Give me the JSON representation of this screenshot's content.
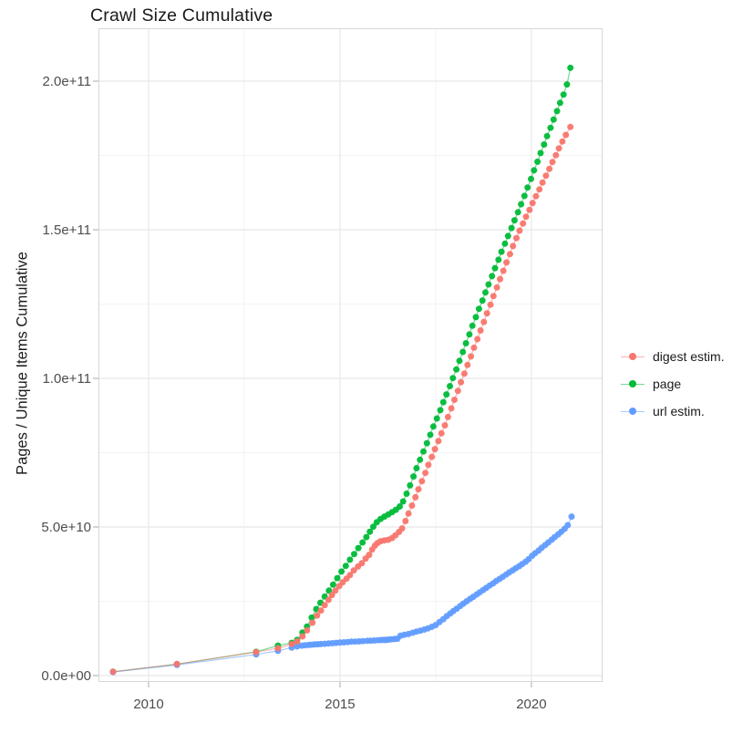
{
  "title": "Crawl Size Cumulative",
  "y_axis": {
    "title": "Pages / Unique Items Cumulative",
    "tick_labels": [
      "0.0e+00",
      "5.0e+10",
      "1.0e+11",
      "1.5e+11",
      "2.0e+11"
    ],
    "tick_values_billions": [
      0,
      50,
      100,
      150,
      200
    ],
    "minor_values_billions": [
      25,
      75,
      125,
      175
    ]
  },
  "x_axis": {
    "tick_labels": [
      "2010",
      "2015",
      "2020"
    ],
    "tick_values": [
      2010,
      2015,
      2020
    ],
    "minor_values": [
      2012.5,
      2017.5
    ]
  },
  "legend": {
    "items": [
      {
        "label": "digest estim.",
        "color": "#F8766D"
      },
      {
        "label": "page",
        "color": "#00BA38"
      },
      {
        "label": "url estim.",
        "color": "#619CFF"
      }
    ]
  },
  "colors": {
    "digest": "#F8766D",
    "page": "#00BA38",
    "url": "#619CFF",
    "grid_major": "#e8e8e8",
    "grid_minor": "#f3f3f3",
    "panel_border": "#d6d6d6",
    "tick_mark": "#b8b8b8",
    "tick_label": "#4d4d4d"
  },
  "chart_data": {
    "type": "scatter",
    "title": "Crawl Size Cumulative",
    "xlabel": "",
    "ylabel": "Pages / Unique Items Cumulative",
    "x_unit": "year",
    "y_unit_note": "point values below are in billions (1e9); axis shows 0.0e+00 to 2.0e+11",
    "xlim": [
      2008.69,
      2021.86
    ],
    "ylim_billions": [
      -2.15,
      217.8
    ],
    "grid": "major+minor",
    "legend_position": "right",
    "marker": "point-with-line",
    "series": [
      {
        "name": "page",
        "color": "#00BA38",
        "points": [
          [
            2009.07,
            1.3
          ],
          [
            2010.74,
            3.8
          ],
          [
            2012.81,
            8.0
          ],
          [
            2013.38,
            10.1
          ],
          [
            2013.74,
            11.0
          ],
          [
            2013.88,
            12.0
          ],
          [
            2014.02,
            14.5
          ],
          [
            2014.14,
            16.5
          ],
          [
            2014.26,
            19.5
          ],
          [
            2014.38,
            22.4
          ],
          [
            2014.49,
            24.5
          ],
          [
            2014.6,
            26.6
          ],
          [
            2014.71,
            28.6
          ],
          [
            2014.82,
            30.6
          ],
          [
            2014.93,
            32.8
          ],
          [
            2015.04,
            35.0
          ],
          [
            2015.15,
            36.9
          ],
          [
            2015.26,
            39.0
          ],
          [
            2015.37,
            40.9
          ],
          [
            2015.48,
            42.9
          ],
          [
            2015.59,
            44.8
          ],
          [
            2015.69,
            46.6
          ],
          [
            2015.78,
            48.4
          ],
          [
            2015.87,
            50.1
          ],
          [
            2015.96,
            51.6
          ],
          [
            2016.06,
            52.7
          ],
          [
            2016.16,
            53.5
          ],
          [
            2016.26,
            54.2
          ],
          [
            2016.36,
            55.0
          ],
          [
            2016.46,
            55.8
          ],
          [
            2016.56,
            56.9
          ],
          [
            2016.65,
            58.6
          ],
          [
            2016.74,
            61.2
          ],
          [
            2016.83,
            64.0
          ],
          [
            2016.92,
            67.0
          ],
          [
            2017.0,
            69.8
          ],
          [
            2017.09,
            72.6
          ],
          [
            2017.18,
            75.4
          ],
          [
            2017.27,
            78.2
          ],
          [
            2017.36,
            81.0
          ],
          [
            2017.44,
            83.8
          ],
          [
            2017.53,
            86.5
          ],
          [
            2017.62,
            89.3
          ],
          [
            2017.7,
            92.0
          ],
          [
            2017.78,
            94.6
          ],
          [
            2017.87,
            97.4
          ],
          [
            2017.95,
            100.1
          ],
          [
            2018.04,
            103.0
          ],
          [
            2018.12,
            105.9
          ],
          [
            2018.21,
            108.9
          ],
          [
            2018.29,
            111.8
          ],
          [
            2018.38,
            114.8
          ],
          [
            2018.46,
            117.7
          ],
          [
            2018.55,
            120.6
          ],
          [
            2018.63,
            123.4
          ],
          [
            2018.72,
            126.2
          ],
          [
            2018.8,
            128.9
          ],
          [
            2018.88,
            131.6
          ],
          [
            2018.97,
            134.4
          ],
          [
            2019.05,
            137.1
          ],
          [
            2019.14,
            139.9
          ],
          [
            2019.22,
            142.6
          ],
          [
            2019.31,
            145.3
          ],
          [
            2019.39,
            147.9
          ],
          [
            2019.48,
            150.6
          ],
          [
            2019.56,
            153.2
          ],
          [
            2019.65,
            155.9
          ],
          [
            2019.73,
            158.6
          ],
          [
            2019.82,
            161.4
          ],
          [
            2019.9,
            164.2
          ],
          [
            2019.99,
            167.1
          ],
          [
            2020.07,
            170.0
          ],
          [
            2020.16,
            172.9
          ],
          [
            2020.24,
            175.8
          ],
          [
            2020.33,
            178.7
          ],
          [
            2020.41,
            181.5
          ],
          [
            2020.5,
            184.3
          ],
          [
            2020.58,
            187.1
          ],
          [
            2020.67,
            189.9
          ],
          [
            2020.75,
            192.7
          ],
          [
            2020.84,
            195.5
          ],
          [
            2020.93,
            198.9
          ],
          [
            2021.02,
            204.5
          ]
        ]
      },
      {
        "name": "url estim.",
        "color": "#619CFF",
        "points": [
          [
            2009.07,
            1.2
          ],
          [
            2010.74,
            3.6
          ],
          [
            2012.81,
            7.1
          ],
          [
            2013.38,
            8.3
          ],
          [
            2013.74,
            9.4
          ],
          [
            2013.88,
            9.8
          ],
          [
            2014.0,
            10.1
          ],
          [
            2014.09,
            10.2
          ],
          [
            2014.18,
            10.3
          ],
          [
            2014.26,
            10.4
          ],
          [
            2014.34,
            10.5
          ],
          [
            2014.42,
            10.55
          ],
          [
            2014.5,
            10.6
          ],
          [
            2014.6,
            10.7
          ],
          [
            2014.7,
            10.8
          ],
          [
            2014.8,
            10.9
          ],
          [
            2014.9,
            11.0
          ],
          [
            2015.0,
            11.1
          ],
          [
            2015.1,
            11.2
          ],
          [
            2015.2,
            11.3
          ],
          [
            2015.3,
            11.4
          ],
          [
            2015.4,
            11.45
          ],
          [
            2015.5,
            11.5
          ],
          [
            2015.6,
            11.6
          ],
          [
            2015.71,
            11.7
          ],
          [
            2015.8,
            11.75
          ],
          [
            2015.9,
            11.8
          ],
          [
            2016.0,
            11.9
          ],
          [
            2016.08,
            11.95
          ],
          [
            2016.15,
            12.0
          ],
          [
            2016.19,
            12.0
          ],
          [
            2016.23,
            12.05
          ],
          [
            2016.27,
            12.1
          ],
          [
            2016.35,
            12.2
          ],
          [
            2016.43,
            12.3
          ],
          [
            2016.5,
            12.4
          ],
          [
            2016.58,
            13.4
          ],
          [
            2016.68,
            13.7
          ],
          [
            2016.79,
            14.0
          ],
          [
            2016.9,
            14.4
          ],
          [
            2017.0,
            14.8
          ],
          [
            2017.1,
            15.1
          ],
          [
            2017.2,
            15.5
          ],
          [
            2017.3,
            15.9
          ],
          [
            2017.4,
            16.4
          ],
          [
            2017.5,
            17.0
          ],
          [
            2017.6,
            18.0
          ],
          [
            2017.7,
            19.0
          ],
          [
            2017.79,
            20.0
          ],
          [
            2017.88,
            20.9
          ],
          [
            2017.96,
            21.7
          ],
          [
            2018.05,
            22.5
          ],
          [
            2018.14,
            23.4
          ],
          [
            2018.22,
            24.2
          ],
          [
            2018.31,
            25.0
          ],
          [
            2018.4,
            25.8
          ],
          [
            2018.48,
            26.5
          ],
          [
            2018.57,
            27.3
          ],
          [
            2018.65,
            28.0
          ],
          [
            2018.74,
            28.8
          ],
          [
            2018.82,
            29.5
          ],
          [
            2018.91,
            30.3
          ],
          [
            2019.0,
            31.0
          ],
          [
            2019.08,
            31.8
          ],
          [
            2019.17,
            32.5
          ],
          [
            2019.25,
            33.2
          ],
          [
            2019.34,
            34.0
          ],
          [
            2019.42,
            34.7
          ],
          [
            2019.51,
            35.4
          ],
          [
            2019.59,
            36.1
          ],
          [
            2019.68,
            36.8
          ],
          [
            2019.76,
            37.5
          ],
          [
            2019.85,
            38.3
          ],
          [
            2019.93,
            39.2
          ],
          [
            2020.02,
            40.3
          ],
          [
            2020.1,
            41.2
          ],
          [
            2020.19,
            42.1
          ],
          [
            2020.27,
            43.0
          ],
          [
            2020.36,
            43.9
          ],
          [
            2020.44,
            44.8
          ],
          [
            2020.53,
            45.7
          ],
          [
            2020.61,
            46.6
          ],
          [
            2020.7,
            47.5
          ],
          [
            2020.78,
            48.4
          ],
          [
            2020.87,
            49.4
          ],
          [
            2020.95,
            50.6
          ],
          [
            2021.05,
            53.5
          ]
        ]
      },
      {
        "name": "digest estim.",
        "color": "#F8766D",
        "points": [
          [
            2009.07,
            1.3
          ],
          [
            2010.74,
            3.9
          ],
          [
            2012.81,
            7.9
          ],
          [
            2013.38,
            9.2
          ],
          [
            2013.74,
            10.6
          ],
          [
            2013.88,
            11.5
          ],
          [
            2014.02,
            13.2
          ],
          [
            2014.14,
            15.2
          ],
          [
            2014.28,
            17.8
          ],
          [
            2014.4,
            20.2
          ],
          [
            2014.5,
            21.9
          ],
          [
            2014.6,
            23.7
          ],
          [
            2014.7,
            25.5
          ],
          [
            2014.79,
            27.1
          ],
          [
            2014.88,
            28.6
          ],
          [
            2014.98,
            30.1
          ],
          [
            2015.07,
            31.4
          ],
          [
            2015.17,
            32.6
          ],
          [
            2015.26,
            33.8
          ],
          [
            2015.36,
            35.4
          ],
          [
            2015.47,
            36.7
          ],
          [
            2015.57,
            37.8
          ],
          [
            2015.67,
            39.4
          ],
          [
            2015.76,
            40.6
          ],
          [
            2015.84,
            42.4
          ],
          [
            2015.91,
            43.7
          ],
          [
            2015.98,
            44.6
          ],
          [
            2016.06,
            45.2
          ],
          [
            2016.16,
            45.5
          ],
          [
            2016.26,
            45.7
          ],
          [
            2016.36,
            46.3
          ],
          [
            2016.45,
            47.2
          ],
          [
            2016.54,
            48.3
          ],
          [
            2016.62,
            49.5
          ],
          [
            2016.71,
            52.0
          ],
          [
            2016.79,
            54.5
          ],
          [
            2016.88,
            57.2
          ],
          [
            2016.97,
            60.0
          ],
          [
            2017.05,
            62.7
          ],
          [
            2017.14,
            65.4
          ],
          [
            2017.23,
            68.2
          ],
          [
            2017.31,
            70.9
          ],
          [
            2017.4,
            73.6
          ],
          [
            2017.48,
            76.2
          ],
          [
            2017.57,
            78.9
          ],
          [
            2017.65,
            81.5
          ],
          [
            2017.74,
            84.2
          ],
          [
            2017.82,
            87.0
          ],
          [
            2017.91,
            89.9
          ],
          [
            2017.99,
            92.8
          ],
          [
            2018.08,
            95.8
          ],
          [
            2018.16,
            98.7
          ],
          [
            2018.25,
            101.6
          ],
          [
            2018.33,
            104.5
          ],
          [
            2018.42,
            107.4
          ],
          [
            2018.5,
            110.3
          ],
          [
            2018.59,
            113.2
          ],
          [
            2018.67,
            116.1
          ],
          [
            2018.76,
            119.0
          ],
          [
            2018.84,
            121.9
          ],
          [
            2018.93,
            124.8
          ],
          [
            2019.01,
            127.7
          ],
          [
            2019.1,
            130.6
          ],
          [
            2019.18,
            133.4
          ],
          [
            2019.27,
            136.2
          ],
          [
            2019.35,
            139.0
          ],
          [
            2019.44,
            141.8
          ],
          [
            2019.52,
            144.5
          ],
          [
            2019.61,
            147.2
          ],
          [
            2019.69,
            149.7
          ],
          [
            2019.78,
            152.1
          ],
          [
            2019.86,
            154.4
          ],
          [
            2019.95,
            156.7
          ],
          [
            2020.03,
            159.0
          ],
          [
            2020.12,
            161.3
          ],
          [
            2020.21,
            163.6
          ],
          [
            2020.29,
            165.9
          ],
          [
            2020.38,
            168.2
          ],
          [
            2020.47,
            170.5
          ],
          [
            2020.55,
            172.8
          ],
          [
            2020.64,
            175.1
          ],
          [
            2020.72,
            177.4
          ],
          [
            2020.81,
            179.7
          ],
          [
            2020.9,
            181.9
          ],
          [
            2021.02,
            184.6
          ]
        ]
      }
    ]
  }
}
